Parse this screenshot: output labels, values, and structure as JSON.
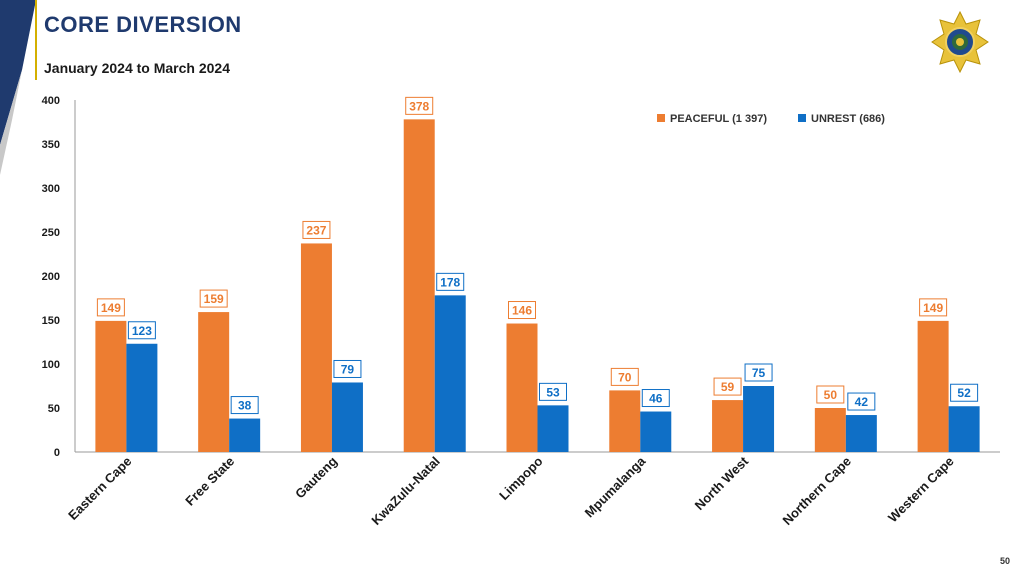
{
  "header": {
    "title": "CORE DIVERSION",
    "subtitle": "January 2024 to March 2024",
    "page_number": "50"
  },
  "colors": {
    "peaceful": "#ED7D31",
    "unrest": "#0F6FC6",
    "title": "#1f3a6e"
  },
  "chart_data": {
    "type": "bar",
    "title": "CORE DIVERSION",
    "subtitle": "January 2024 to March 2024",
    "xlabel": "",
    "ylabel": "",
    "ylim": [
      0,
      400
    ],
    "yticks": [
      0,
      50,
      100,
      150,
      200,
      250,
      300,
      350,
      400
    ],
    "grid": false,
    "legend_position": "top-right",
    "categories": [
      "Eastern Cape",
      "Free State",
      "Gauteng",
      "KwaZulu-Natal",
      "Limpopo",
      "Mpumalanga",
      "North West",
      "Northern Cape",
      "Western Cape"
    ],
    "series": [
      {
        "name": "PEACEFUL (1 397)",
        "key": "peaceful",
        "values": [
          149,
          159,
          237,
          378,
          146,
          70,
          59,
          50,
          149
        ]
      },
      {
        "name": "UNREST (686)",
        "key": "unrest",
        "values": [
          123,
          38,
          79,
          178,
          53,
          46,
          75,
          42,
          52
        ]
      }
    ]
  }
}
